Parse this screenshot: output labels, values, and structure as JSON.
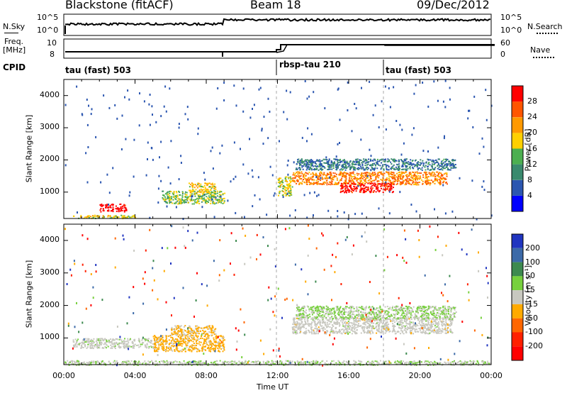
{
  "header": {
    "site": "Blackstone (fitACF)",
    "beam": "Beam 18",
    "date": "09/Dec/2012"
  },
  "strip_labels": {
    "nsky": "N.Sky",
    "nsky_ticks": [
      "10^5",
      "10^0"
    ],
    "nsearch": "N.Search",
    "nsearch_ticks": [
      "10^5",
      "10^0"
    ],
    "freq": "Freq.",
    "freq_unit": "[MHz]",
    "freq_ticks": [
      "10",
      "8"
    ],
    "nave": "Nave",
    "nave_ticks": [
      "60",
      "0"
    ],
    "cpid": "CPID"
  },
  "cpid_segments": [
    {
      "name": "tau (fast) 503",
      "start_hour": 0
    },
    {
      "name": "rbsp-tau 210",
      "start_hour": 12
    },
    {
      "name": "tau (fast) 503",
      "start_hour": 18
    }
  ],
  "x_axis": {
    "label": "Time UT",
    "ticks": [
      "00:00",
      "04:00",
      "08:00",
      "12:00",
      "16:00",
      "20:00",
      "00:00"
    ]
  },
  "y_axis": {
    "label": "Slant Range [km]",
    "ticks": [
      "1000",
      "2000",
      "3000",
      "4000"
    ]
  },
  "colorbars": {
    "power": {
      "label": "Power [dB]",
      "ticks": [
        "4",
        "8",
        "12",
        "16",
        "20",
        "24",
        "28"
      ],
      "colors": [
        "#0000ff",
        "#2b56b0",
        "#3a8a6e",
        "#4caf50",
        "#ffd000",
        "#ff9900",
        "#ff5500",
        "#ff0000"
      ]
    },
    "velocity": {
      "label": "Velocity [m s⁻¹]",
      "ticks": [
        "200",
        "100",
        "50",
        "15",
        "-15",
        "-50",
        "-100",
        "-200"
      ],
      "colors": [
        "#2035c0",
        "#3c6aa8",
        "#3d8a4f",
        "#77d03d",
        "#c8c8c0",
        "#ffaa00",
        "#ff6600",
        "#ff2000",
        "#ff0000"
      ]
    }
  },
  "chart_data": [
    {
      "type": "heatmap",
      "name": "Power",
      "x": [
        "00:00",
        "04:00",
        "08:00",
        "12:00",
        "16:00",
        "20:00",
        "00:00"
      ],
      "ylim": [
        180,
        4500
      ],
      "colorbar_range": [
        0,
        30
      ],
      "features": [
        {
          "t": [
            0.5,
            4.0
          ],
          "range": [
            200,
            300
          ],
          "value": 16
        },
        {
          "t": [
            2.0,
            3.5
          ],
          "range": [
            400,
            650
          ],
          "value": 30
        },
        {
          "t": [
            5.5,
            9.0
          ],
          "range": [
            650,
            1050
          ],
          "value": 14
        },
        {
          "t": [
            7.0,
            8.5
          ],
          "range": [
            1000,
            1300
          ],
          "value": 18
        },
        {
          "t": [
            12.0,
            12.8
          ],
          "range": [
            900,
            1500
          ],
          "value": 16
        },
        {
          "t": [
            12.8,
            21.5
          ],
          "range": [
            1250,
            1650
          ],
          "value": 22
        },
        {
          "t": [
            15.5,
            18.5
          ],
          "range": [
            1000,
            1300
          ],
          "value": 28
        },
        {
          "t": [
            13.0,
            22.0
          ],
          "range": [
            1700,
            2050
          ],
          "value": 8
        }
      ]
    },
    {
      "type": "heatmap",
      "name": "Velocity",
      "x": [
        "00:00",
        "04:00",
        "08:00",
        "12:00",
        "16:00",
        "20:00",
        "00:00"
      ],
      "ylim": [
        180,
        4500
      ],
      "colorbar_range": [
        -250,
        250
      ],
      "features": [
        {
          "t": [
            5.0,
            9.0
          ],
          "range": [
            600,
            1100
          ],
          "value": -50
        },
        {
          "t": [
            6.0,
            8.5
          ],
          "range": [
            1100,
            1400
          ],
          "value": -40
        },
        {
          "t": [
            0.5,
            5.0
          ],
          "range": [
            700,
            1000
          ],
          "value": 5
        },
        {
          "t": [
            12.8,
            21.8
          ],
          "range": [
            1150,
            1650
          ],
          "value": 0
        },
        {
          "t": [
            13.0,
            22.0
          ],
          "range": [
            1600,
            2000
          ],
          "value": 30
        },
        {
          "t": [
            0.0,
            24.0
          ],
          "range": [
            180,
            320
          ],
          "value": 20
        }
      ]
    }
  ]
}
